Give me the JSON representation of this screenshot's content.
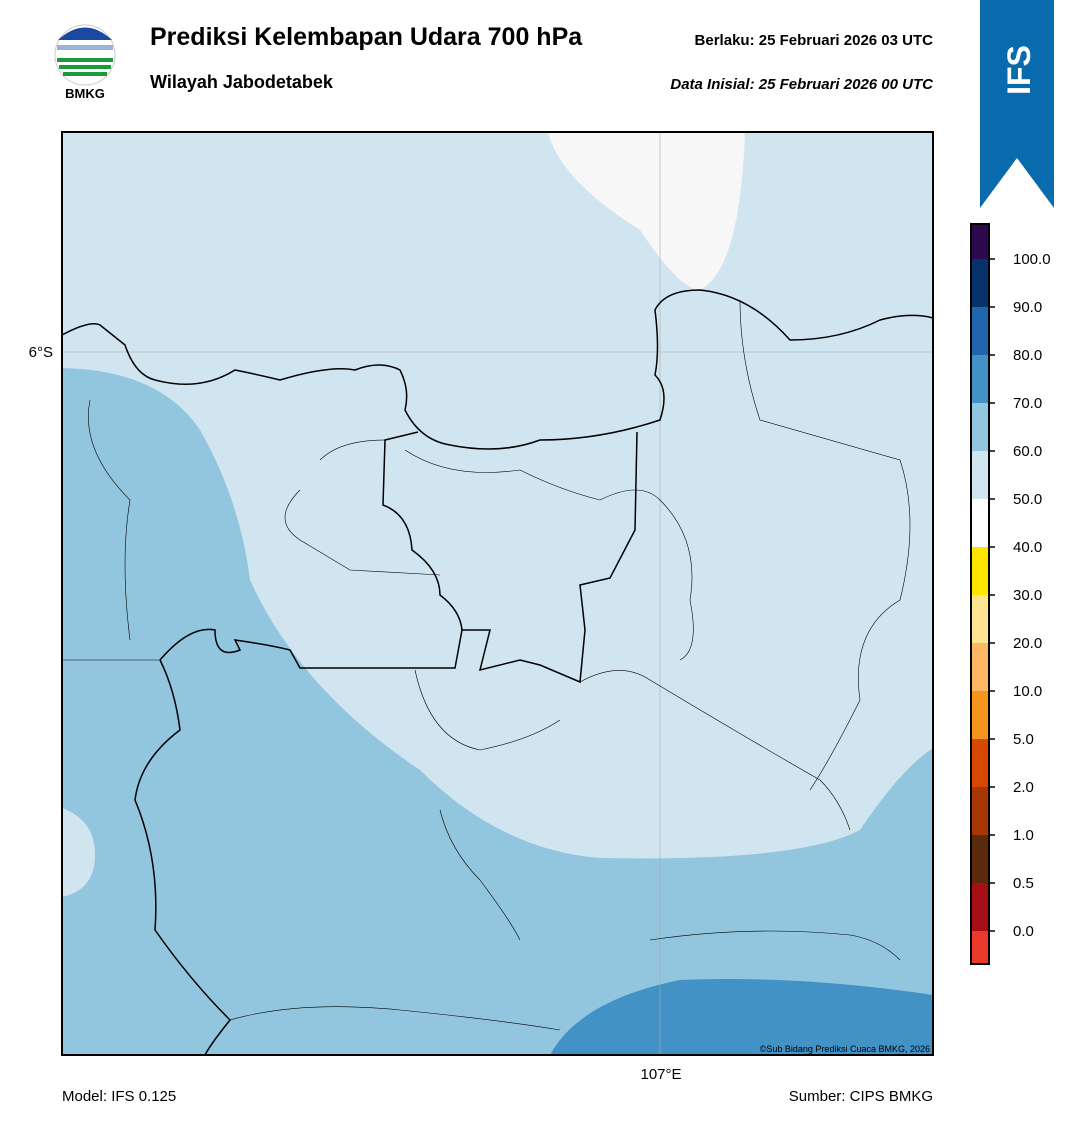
{
  "logo": {
    "text": "BMKG"
  },
  "header": {
    "title": "Prediksi Kelembapan Udara 700 hPa",
    "subtitle": "Wilayah Jabodetabek",
    "valid": "Berlaku:  25 Februari 2026 03 UTC",
    "init": "Data Inisial:  25 Februari 2026 00 UTC"
  },
  "badge": {
    "text": "IFS"
  },
  "map": {
    "lat_label": "6°S",
    "lon_label": "107°E",
    "credit": "©Sub Bidang Prediksi Cuaca BMKG, 2026"
  },
  "colorbar": {
    "labels": [
      "0.0",
      "0.5",
      "1.0",
      "2.0",
      "5.0",
      "10.0",
      "20.0",
      "30.0",
      "40.0",
      "50.0",
      "60.0",
      "70.0",
      "80.0",
      "90.0",
      "100.0"
    ],
    "colors": [
      "#e8392b",
      "#a50f15",
      "#5a2a0a",
      "#a63603",
      "#d94801",
      "#f7941d",
      "#fdb863",
      "#fee391",
      "#ffe600",
      "#ffffff",
      "#d1e5f0",
      "#92c5de",
      "#4292c6",
      "#2166ac",
      "#08306b",
      "#2d0a4e"
    ]
  },
  "footer": {
    "model": "Model: IFS 0.125",
    "source": "Sumber: CIPS BMKG"
  }
}
